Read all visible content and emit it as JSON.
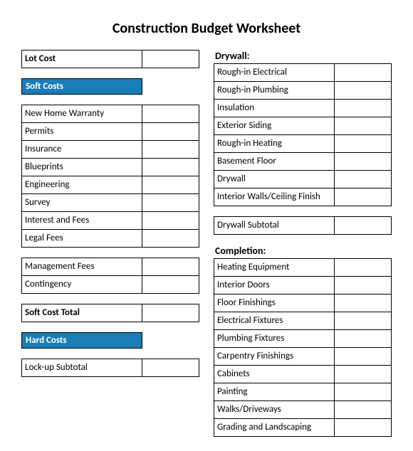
{
  "title": "Construction Budget Worksheet",
  "colors": {
    "section_header_bg": "#1a7db6",
    "section_header_text": "#ffffff",
    "cell_border": "#000000",
    "cell_bg": "#ffffff",
    "page_bg": "#ffffff",
    "text": "#000000"
  },
  "typography": {
    "title_fontsize": 20,
    "body_fontsize": 13,
    "subhead_fontsize": 14,
    "font_family": "Calibri"
  },
  "layout": {
    "col_label_width_pct": 68,
    "col_value_width_pct": 32
  },
  "left": {
    "lot_cost": {
      "label": "Lot Cost",
      "value": ""
    },
    "soft_costs_header": "Soft Costs",
    "soft_costs_items_1": [
      {
        "label": "New Home Warranty",
        "value": ""
      },
      {
        "label": "Permits",
        "value": ""
      },
      {
        "label": "Insurance",
        "value": ""
      },
      {
        "label": "Blueprints",
        "value": ""
      },
      {
        "label": "Engineering",
        "value": ""
      },
      {
        "label": "Survey",
        "value": ""
      },
      {
        "label": "Interest and Fees",
        "value": ""
      },
      {
        "label": "Legal Fees",
        "value": ""
      }
    ],
    "soft_costs_items_2": [
      {
        "label": "Management Fees",
        "value": ""
      },
      {
        "label": "Contingency",
        "value": ""
      }
    ],
    "soft_cost_total": {
      "label": "Soft Cost Total",
      "value": ""
    },
    "hard_costs_header": "Hard Costs",
    "lockup_subtotal": {
      "label": "Lock-up Subtotal",
      "value": ""
    }
  },
  "right": {
    "drywall_header": "Drywall:",
    "drywall_items": [
      {
        "label": "Rough-in Electrical",
        "value": ""
      },
      {
        "label": "Rough-in Plumbing",
        "value": ""
      },
      {
        "label": "Insulation",
        "value": ""
      },
      {
        "label": "Exterior Siding",
        "value": ""
      },
      {
        "label": "Rough-in Heating",
        "value": ""
      },
      {
        "label": "Basement Floor",
        "value": ""
      },
      {
        "label": "Drywall",
        "value": ""
      },
      {
        "label": "Interior Walls/Ceiling Finish",
        "value": ""
      }
    ],
    "drywall_subtotal": {
      "label": "Drywall Subtotal",
      "value": ""
    },
    "completion_header": "Completion:",
    "completion_items": [
      {
        "label": "Heating Equipment",
        "value": ""
      },
      {
        "label": "Interior Doors",
        "value": ""
      },
      {
        "label": "Floor Finishings",
        "value": ""
      },
      {
        "label": "Electrical Fixtures",
        "value": ""
      },
      {
        "label": "Plumbing Fixtures",
        "value": ""
      },
      {
        "label": "Carpentry Finishings",
        "value": ""
      },
      {
        "label": "Cabinets",
        "value": ""
      },
      {
        "label": "Painting",
        "value": ""
      },
      {
        "label": "Walks/Driveways",
        "value": ""
      },
      {
        "label": "Grading and Landscaping",
        "value": ""
      }
    ]
  }
}
